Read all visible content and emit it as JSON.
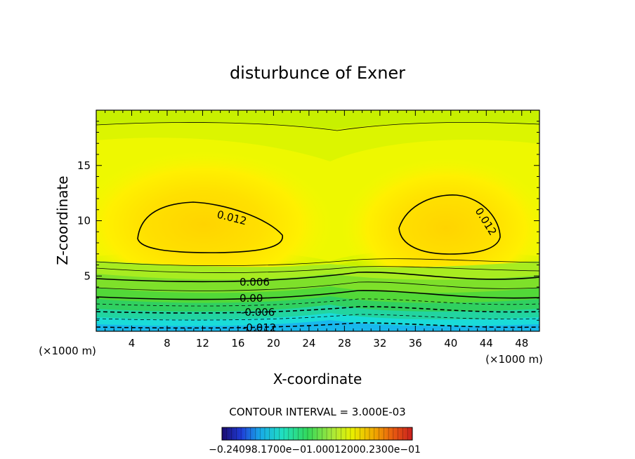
{
  "chart_data": {
    "type": "contour",
    "title": "disturbunce of Exner",
    "xlabel": "X-coordinate",
    "ylabel": "Z-coordinate",
    "x_unit": "(×1000 m)",
    "y_unit": "(×1000 m)",
    "xlim": [
      0,
      50
    ],
    "ylim": [
      0,
      20
    ],
    "x_ticks": [
      4,
      8,
      12,
      16,
      20,
      24,
      28,
      32,
      36,
      40,
      44,
      48
    ],
    "y_ticks": [
      5,
      10,
      15
    ],
    "contour_interval_text": "CONTOUR INTERVAL = 3.000E-03",
    "contour_labels": [
      {
        "text": "0.012",
        "x": 14.5,
        "y": 10.5
      },
      {
        "text": "0.012",
        "x": 44.0,
        "y": 10.0
      },
      {
        "text": "0.006",
        "x": 18.5,
        "y": 4.5
      },
      {
        "text": "0.00",
        "x": 18.0,
        "y": 3.0
      },
      {
        "text": "-0.006",
        "x": 19.0,
        "y": 1.8
      },
      {
        "text": "-0.012",
        "x": 17.0,
        "y": 0.3
      }
    ],
    "colorbar_labels_text": "−0.24098.1700e−01.00012000.2300e−01",
    "colorbar_colors": [
      "#1a0a6e",
      "#1f3bd6",
      "#18a9e8",
      "#20e0c0",
      "#33d85a",
      "#a8e83a",
      "#e8f000",
      "#f0a800",
      "#e85a10",
      "#c81e1e"
    ]
  }
}
